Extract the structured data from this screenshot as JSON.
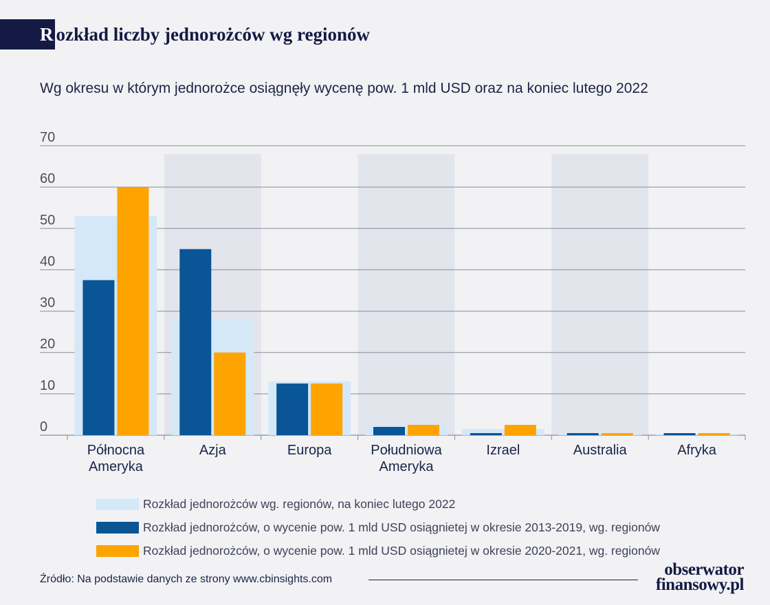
{
  "title": {
    "first_letter": "R",
    "rest": "ozkład liczby jednorożców wg regionów"
  },
  "subtitle": "Wg okresu w którym jednorożce osiągnęły wycenę pow. 1 mld USD oraz na koniec lutego 2022",
  "colors": {
    "total": "#d4e8f8",
    "period_2013_2019": "#0a5596",
    "period_2020_2021": "#fda400",
    "band": "#e3e5ec",
    "grid": "#8a8d99",
    "background": "#f2f2f4"
  },
  "chart_data": {
    "type": "bar",
    "categories": [
      [
        "Północna",
        "Ameryka"
      ],
      [
        "Azja"
      ],
      [
        "Europa"
      ],
      [
        "Południowa",
        "Ameryka"
      ],
      [
        "Izrael"
      ],
      [
        "Australia"
      ],
      [
        "Afryka"
      ]
    ],
    "series": [
      {
        "name": "Rozkład jednorożców wg. regionów, na koniec lutego 2022",
        "values": [
          53,
          28,
          13,
          2.5,
          1.5,
          0.3,
          0.3
        ]
      },
      {
        "name": "Rozkład jednorożców, o wycenie pow. 1 mld USD osiągnietej w okresie 2013-2019, wg. regionów",
        "values": [
          37.5,
          45,
          12.5,
          2,
          0.5,
          0.5,
          0.5
        ]
      },
      {
        "name": "Rozkład jednorożców, o wycenie pow. 1 mld USD osiągnietej w okresie 2020-2021, wg. regionów",
        "values": [
          60,
          20,
          12.5,
          2.5,
          2.5,
          0.5,
          0.5
        ]
      }
    ],
    "yticks": [
      0,
      10,
      20,
      30,
      40,
      50,
      60,
      70
    ],
    "ylim": [
      0,
      70
    ],
    "grid": true,
    "legend": "bottom"
  },
  "source": "Źródło: Na podstawie danych ze strony www.cbinsights.com",
  "logo": {
    "line1": "obserwator",
    "line2": "finansowy.pl"
  }
}
